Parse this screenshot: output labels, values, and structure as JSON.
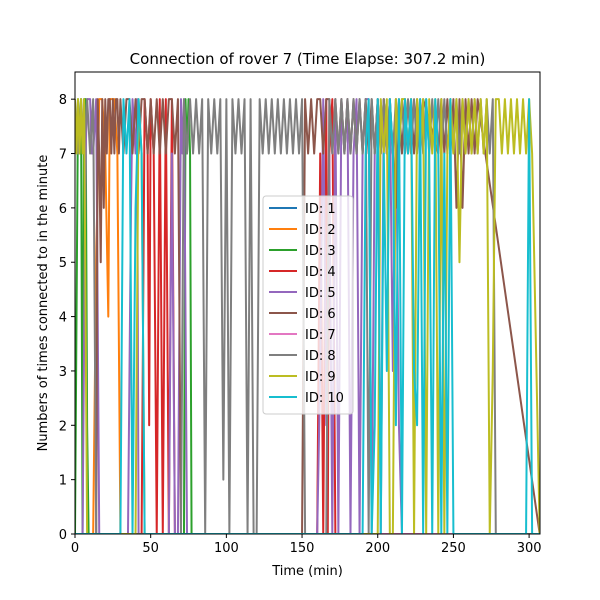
{
  "chart_data": {
    "type": "line",
    "title": "Connection of rover 7 (Time Elapse: 307.2 min)",
    "xlabel": "Time (min)",
    "ylabel": "Numbers of times connected to in the minute",
    "xlim": [
      0,
      307.2
    ],
    "ylim": [
      0,
      8.5
    ],
    "xticks": [
      0,
      50,
      100,
      150,
      200,
      250,
      300
    ],
    "yticks": [
      0,
      1,
      2,
      3,
      4,
      5,
      6,
      7,
      8
    ],
    "grid": false,
    "legend_position": "center",
    "series": [
      {
        "name": "ID: 1",
        "color": "#1f77b4",
        "x": [
          0,
          307
        ],
        "y": [
          0,
          0
        ]
      },
      {
        "name": "ID: 2",
        "color": "#ff7f0e",
        "x": [
          0,
          2,
          4,
          6,
          8,
          10,
          12,
          14,
          16,
          18,
          20,
          22,
          23,
          24,
          26,
          28,
          30,
          31,
          307
        ],
        "y": [
          0,
          0,
          0,
          0,
          0,
          0,
          0,
          5,
          8,
          8,
          7,
          4,
          8,
          8,
          8,
          7,
          0,
          0,
          0
        ]
      },
      {
        "name": "ID: 3",
        "color": "#2ca02c",
        "x": [
          0,
          2,
          3,
          4,
          5,
          6,
          7,
          8,
          9,
          10,
          50,
          72,
          73,
          74,
          75,
          76,
          77,
          307
        ],
        "y": [
          0,
          8,
          7,
          8,
          0,
          8,
          8,
          2,
          0,
          0,
          0,
          0,
          8,
          7,
          8,
          7,
          0,
          0
        ]
      },
      {
        "name": "ID: 4",
        "color": "#d62728",
        "x": [
          0,
          44,
          46,
          48,
          49,
          50,
          52,
          54,
          56,
          58,
          60,
          62,
          64,
          66,
          150,
          160,
          162,
          164,
          166,
          167,
          168,
          170,
          172,
          307
        ],
        "y": [
          0,
          0,
          8,
          7,
          2,
          8,
          7,
          0,
          8,
          0,
          8,
          0,
          8,
          0,
          0,
          0,
          7,
          0,
          8,
          0,
          7,
          8,
          0,
          0
        ]
      },
      {
        "name": "ID: 5",
        "color": "#9467bd",
        "x": [
          0,
          5,
          7,
          8,
          10,
          11,
          12,
          14,
          16,
          35,
          37,
          38,
          40,
          41,
          42,
          44,
          60,
          62,
          64,
          66,
          68,
          70,
          71,
          72,
          74,
          160,
          162,
          164,
          166,
          168,
          170,
          172,
          174,
          176,
          178,
          180,
          182,
          184,
          186,
          188,
          190,
          192,
          194,
          196,
          198,
          200,
          202,
          204,
          206,
          208,
          210,
          212,
          214,
          216,
          307
        ],
        "y": [
          0,
          0,
          7,
          8,
          8,
          7,
          7,
          8,
          0,
          0,
          6,
          8,
          7,
          8,
          0,
          0,
          0,
          0,
          7,
          0,
          0,
          8,
          7,
          8,
          0,
          0,
          3,
          8,
          2,
          7,
          0,
          8,
          0,
          8,
          7,
          8,
          0,
          7,
          8,
          0,
          7,
          8,
          8,
          0,
          7,
          8,
          0,
          8,
          7,
          8,
          3,
          8,
          2,
          0,
          0
        ]
      },
      {
        "name": "ID: 6",
        "color": "#8c564b",
        "x": [
          0,
          14,
          15,
          16,
          17,
          18,
          19,
          20,
          21,
          22,
          23,
          24,
          25,
          26,
          27,
          28,
          29,
          30,
          32,
          34,
          36,
          38,
          40,
          42,
          44,
          46,
          48,
          50,
          52,
          54,
          56,
          58,
          60,
          62,
          64,
          66,
          68,
          70,
          150,
          152,
          154,
          156,
          158,
          160,
          162,
          164,
          166,
          168,
          170,
          172,
          174,
          176,
          178,
          180,
          182,
          184,
          186,
          188,
          190,
          192,
          194,
          196,
          198,
          200,
          202,
          204,
          206,
          208,
          210,
          212,
          214,
          216,
          218,
          220,
          222,
          224,
          226,
          228,
          230,
          240,
          242,
          244,
          246,
          248,
          250,
          252,
          254,
          256,
          258,
          260,
          262,
          264,
          266,
          307
        ],
        "y": [
          0,
          0,
          8,
          7,
          5,
          8,
          6,
          8,
          7,
          8,
          8,
          7,
          8,
          7,
          8,
          8,
          7,
          8,
          7,
          8,
          8,
          7,
          8,
          7,
          8,
          8,
          7,
          8,
          7,
          8,
          7,
          8,
          7,
          8,
          8,
          7,
          8,
          0,
          0,
          8,
          7,
          8,
          7,
          8,
          8,
          7,
          8,
          8,
          7,
          8,
          7,
          8,
          7,
          8,
          7,
          8,
          7,
          8,
          7,
          8,
          7,
          8,
          7,
          8,
          7,
          8,
          7,
          8,
          7,
          6,
          8,
          7,
          8,
          7,
          8,
          7,
          8,
          7,
          8,
          7,
          8,
          7,
          8,
          7,
          8,
          6,
          8,
          6,
          8,
          7,
          8,
          7,
          8,
          0
        ]
      },
      {
        "name": "ID: 7",
        "color": "#e377c2",
        "x": [
          0,
          307
        ],
        "y": [
          0,
          0
        ]
      },
      {
        "name": "ID: 8",
        "color": "#7f7f7f",
        "x": [
          0,
          2,
          4,
          6,
          8,
          10,
          12,
          14,
          70,
          72,
          74,
          76,
          78,
          80,
          82,
          84,
          86,
          88,
          90,
          92,
          94,
          96,
          98,
          100,
          102,
          104,
          106,
          108,
          110,
          112,
          114,
          116,
          118,
          120,
          122,
          124,
          126,
          128,
          130,
          132,
          134,
          136,
          138,
          140,
          142,
          144,
          146,
          148,
          150,
          152,
          154,
          156,
          158,
          160,
          162,
          164,
          166,
          168,
          170,
          172,
          174,
          176,
          178,
          180,
          182,
          184,
          186,
          188,
          190,
          192,
          194,
          196,
          198,
          200,
          202,
          204,
          206,
          208,
          210,
          212,
          214,
          216,
          218,
          220,
          222,
          224,
          226,
          228,
          230,
          232,
          234,
          236,
          238,
          240,
          242,
          244,
          246,
          248,
          250,
          252,
          254,
          256,
          258,
          260,
          262,
          264,
          266,
          268,
          270,
          272,
          274,
          276,
          278,
          280,
          307
        ],
        "y": [
          8,
          7,
          8,
          7,
          8,
          7,
          8,
          0,
          0,
          8,
          7,
          8,
          7,
          8,
          7,
          8,
          0,
          8,
          7,
          8,
          7,
          8,
          1,
          8,
          0,
          8,
          7,
          8,
          7,
          8,
          0,
          8,
          0,
          0,
          8,
          7,
          8,
          7,
          8,
          7,
          8,
          7,
          8,
          7,
          8,
          7,
          8,
          7,
          8,
          0,
          0,
          0,
          0,
          0,
          0,
          0,
          0,
          8,
          7,
          8,
          7,
          8,
          7,
          8,
          7,
          8,
          7,
          8,
          7,
          8,
          0,
          8,
          7,
          8,
          7,
          8,
          7,
          8,
          7,
          8,
          7,
          8,
          7,
          8,
          7,
          8,
          7,
          8,
          7,
          8,
          7,
          8,
          7,
          8,
          7,
          8,
          7,
          8,
          7,
          8,
          7,
          8,
          7,
          8,
          7,
          8,
          7,
          8,
          7,
          8,
          7,
          8,
          0,
          0,
          0
        ]
      },
      {
        "name": "ID: 9",
        "color": "#bcbd22",
        "x": [
          0,
          1,
          2,
          3,
          4,
          5,
          6,
          8,
          10,
          12,
          14,
          40,
          42,
          44,
          46,
          200,
          202,
          204,
          206,
          208,
          210,
          212,
          214,
          216,
          218,
          220,
          222,
          224,
          226,
          228,
          230,
          232,
          234,
          236,
          238,
          240,
          242,
          244,
          246,
          248,
          250,
          252,
          254,
          256,
          258,
          260,
          262,
          264,
          266,
          268,
          270,
          272,
          274,
          276,
          278,
          280,
          282,
          284,
          286,
          288,
          290,
          292,
          294,
          296,
          298,
          300,
          302,
          307
        ],
        "y": [
          8,
          7,
          8,
          7,
          8,
          7,
          8,
          0,
          0,
          0,
          0,
          0,
          8,
          7,
          0,
          0,
          8,
          7,
          8,
          0,
          0,
          8,
          7,
          8,
          8,
          7,
          8,
          0,
          8,
          7,
          8,
          0,
          8,
          7,
          8,
          0,
          8,
          0,
          7,
          8,
          7,
          8,
          5,
          8,
          7,
          8,
          7,
          8,
          7,
          8,
          7,
          8,
          0,
          3,
          8,
          8,
          7,
          8,
          7,
          8,
          7,
          8,
          7,
          8,
          7,
          8,
          7,
          0
        ]
      },
      {
        "name": "ID: 10",
        "color": "#17becf",
        "x": [
          0,
          30,
          32,
          34,
          36,
          38,
          40,
          42,
          44,
          46,
          190,
          192,
          194,
          196,
          198,
          200,
          202,
          204,
          206,
          208,
          210,
          212,
          214,
          216,
          218,
          220,
          222,
          224,
          226,
          228,
          230,
          232,
          234,
          236,
          238,
          240,
          242,
          244,
          246,
          248,
          250,
          252,
          254,
          256,
          258,
          260,
          262,
          264,
          266,
          268,
          270,
          272,
          274,
          276,
          278,
          280,
          282,
          284,
          286,
          288,
          290,
          292,
          294,
          296,
          298,
          300,
          302,
          307
        ],
        "y": [
          0,
          0,
          8,
          7,
          8,
          0,
          6,
          8,
          7,
          0,
          0,
          7,
          8,
          0,
          2,
          8,
          0,
          7,
          3,
          8,
          7,
          2,
          8,
          0,
          8,
          7,
          8,
          3,
          2,
          8,
          0,
          8,
          7,
          0,
          8,
          7,
          0,
          7,
          0,
          8,
          0,
          0,
          0,
          0,
          0,
          0,
          0,
          0,
          0,
          0,
          0,
          0,
          0,
          0,
          0,
          0,
          0,
          0,
          0,
          0,
          0,
          0,
          0,
          0,
          0,
          8,
          0,
          0
        ]
      }
    ]
  }
}
